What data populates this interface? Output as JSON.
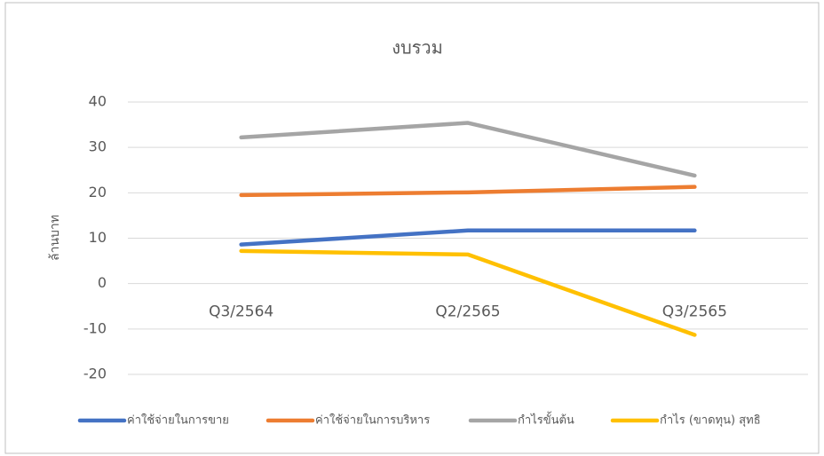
{
  "chart_data": {
    "type": "line",
    "title": "งบรวม",
    "y_label": "ล้านบาท",
    "categories": [
      "Q3/2564",
      "Q2/2565",
      "Q3/2565"
    ],
    "series": [
      {
        "name": "ค่าใช้จ่ายในการขาย",
        "color": "#4472c4",
        "values": [
          8.6,
          11.7,
          11.7
        ]
      },
      {
        "name": "ค่าใช้จ่ายในการบริหาร",
        "color": "#ed7d31",
        "values": [
          19.5,
          20.1,
          21.3
        ]
      },
      {
        "name": "กำไรขั้นต้น",
        "color": "#a5a5a5",
        "values": [
          32.2,
          35.4,
          23.8
        ]
      },
      {
        "name": "กำไร (ขาดทุน) สุทธิ",
        "color": "#ffc000",
        "values": [
          7.2,
          6.4,
          -11.3
        ]
      }
    ],
    "ylim": [
      -20,
      40
    ],
    "yticks": [
      -20,
      -10,
      0,
      10,
      20,
      30,
      40
    ],
    "grid": true,
    "legend": "bottom"
  }
}
